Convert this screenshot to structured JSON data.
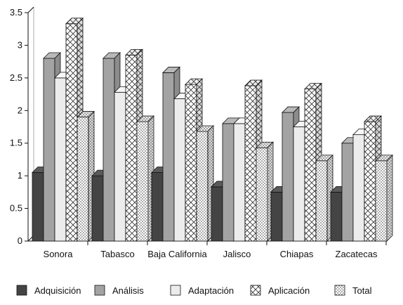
{
  "chart_data": {
    "type": "bar",
    "categories": [
      "Sonora",
      "Tabasco",
      "Baja California",
      "Jalisco",
      "Chiapas",
      "Zacatecas"
    ],
    "series": [
      {
        "name": "Adquisición",
        "values": [
          1.05,
          1.0,
          1.05,
          0.83,
          0.75,
          0.75
        ]
      },
      {
        "name": "Análisis",
        "values": [
          2.8,
          2.8,
          2.58,
          1.8,
          1.97,
          1.5
        ]
      },
      {
        "name": "Adaptación",
        "values": [
          2.5,
          2.28,
          2.18,
          1.8,
          1.75,
          1.63
        ]
      },
      {
        "name": "Aplicación",
        "values": [
          3.33,
          2.85,
          2.4,
          2.38,
          2.33,
          1.83
        ]
      },
      {
        "name": "Total",
        "values": [
          1.9,
          1.83,
          1.68,
          1.43,
          1.23,
          1.23
        ]
      }
    ],
    "yticks": [
      "0",
      "0.5",
      "1",
      "1.5",
      "2",
      "2.5",
      "3",
      "3.5"
    ],
    "ylim": [
      0,
      3.5
    ],
    "title": "",
    "xlabel": "",
    "ylabel": "",
    "legend_position": "bottom",
    "grid": false,
    "style": "3d-bars",
    "series_fills": [
      "dark-gray",
      "mid-gray",
      "light-gray",
      "crosshatch",
      "dots"
    ]
  }
}
